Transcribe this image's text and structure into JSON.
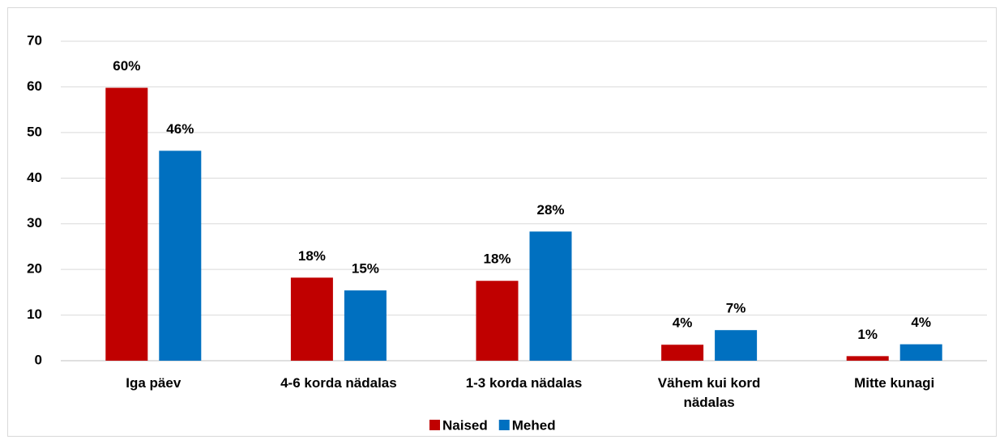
{
  "chart_data": {
    "type": "bar",
    "categories": [
      "Iga päev",
      "4-6 korda nädalas",
      "1-3 korda nädalas",
      "Vähem kui kord nädalas",
      "Mitte kunagi"
    ],
    "series": [
      {
        "name": "Naised",
        "color": "#c00000",
        "values": [
          59.8,
          18.2,
          17.5,
          3.5,
          1.0
        ],
        "value_labels": [
          "60%",
          "18%",
          "18%",
          "4%",
          "1%"
        ]
      },
      {
        "name": "Mehed",
        "color": "#0070c0",
        "values": [
          46.0,
          15.4,
          28.3,
          6.7,
          3.6
        ],
        "value_labels": [
          "46%",
          "15%",
          "28%",
          "7%",
          "4%"
        ]
      }
    ],
    "ylim": [
      0,
      70
    ],
    "yticks": [
      0,
      10,
      20,
      30,
      40,
      50,
      60,
      70
    ],
    "grid": true,
    "legend": "bottom"
  }
}
